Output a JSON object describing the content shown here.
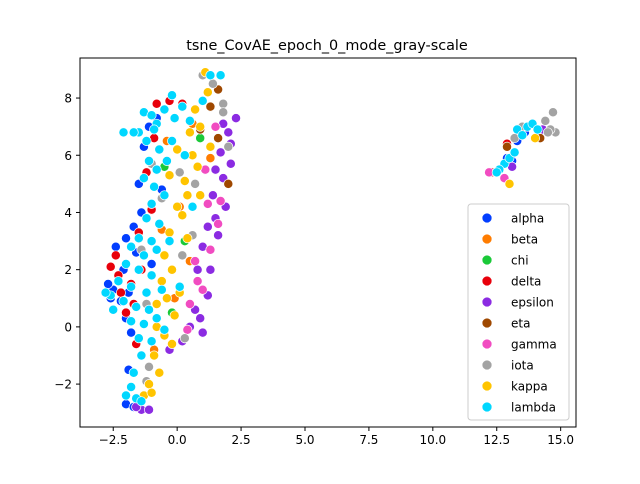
{
  "chart_data": {
    "type": "scatter",
    "title": "tsne_CovAE_epoch_0_mode_gray-scale",
    "xlabel": "",
    "ylabel": "",
    "xlim": [
      -3.8,
      15.6
    ],
    "ylim": [
      -3.5,
      9.4
    ],
    "x_ticks": [
      -2.5,
      0.0,
      2.5,
      5.0,
      7.5,
      10.0,
      12.5,
      15.0
    ],
    "x_tick_labels": [
      "−2.5",
      "0.0",
      "2.5",
      "5.0",
      "7.5",
      "10.0",
      "12.5",
      "15.0"
    ],
    "y_ticks": [
      -2,
      0,
      2,
      4,
      6,
      8
    ],
    "y_tick_labels": [
      "−2",
      "0",
      "2",
      "4",
      "6",
      "8"
    ],
    "grid": false,
    "legend_position": "right-bottom",
    "series": [
      {
        "name": "alpha",
        "color": "#023eff",
        "points": [
          [
            -2.4,
            2.8
          ],
          [
            -2.1,
            2.0
          ],
          [
            -2.2,
            0.9
          ],
          [
            -1.9,
            1.2
          ],
          [
            -2.3,
            1.6
          ],
          [
            -2.0,
            3.1
          ],
          [
            -1.7,
            3.5
          ],
          [
            -1.6,
            2.6
          ],
          [
            -2.5,
            1.3
          ],
          [
            -1.8,
            -0.2
          ],
          [
            -2.0,
            0.3
          ],
          [
            -1.4,
            4.0
          ],
          [
            -1.5,
            5.0
          ],
          [
            -1.3,
            6.3
          ],
          [
            -1.1,
            7.0
          ],
          [
            -0.8,
            7.3
          ],
          [
            -1.9,
            -1.5
          ],
          [
            -2.0,
            -2.7
          ],
          [
            -1.7,
            -2.8
          ],
          [
            -2.6,
            1.0
          ],
          [
            -2.7,
            1.5
          ],
          [
            -1.0,
            2.2
          ],
          [
            -0.6,
            4.8
          ],
          [
            12.9,
            5.9
          ],
          [
            13.3,
            6.5
          ],
          [
            13.1,
            5.8
          ],
          [
            13.6,
            6.8
          ]
        ]
      },
      {
        "name": "beta",
        "color": "#ff7c00",
        "points": [
          [
            -0.4,
            6.5
          ],
          [
            0.1,
            4.2
          ],
          [
            0.5,
            2.3
          ],
          [
            -0.1,
            1.0
          ],
          [
            -0.9,
            -0.8
          ],
          [
            0.6,
            7.1
          ],
          [
            1.3,
            5.9
          ],
          [
            -0.6,
            3.4
          ]
        ]
      },
      {
        "name": "chi",
        "color": "#1ac938",
        "points": [
          [
            -0.5,
            5.6
          ],
          [
            0.3,
            3.0
          ],
          [
            -0.2,
            0.5
          ],
          [
            0.9,
            6.6
          ]
        ]
      },
      {
        "name": "delta",
        "color": "#e8000b",
        "points": [
          [
            -2.4,
            2.5
          ],
          [
            -2.6,
            2.1
          ],
          [
            -2.3,
            1.8
          ],
          [
            -2.2,
            1.2
          ],
          [
            -1.7,
            0.8
          ],
          [
            -1.5,
            3.3
          ],
          [
            -1.2,
            5.4
          ],
          [
            -0.8,
            7.8
          ],
          [
            -0.3,
            7.9
          ],
          [
            0.2,
            7.8
          ],
          [
            -1.0,
            4.1
          ],
          [
            -2.0,
            0.5
          ],
          [
            -1.6,
            -0.6
          ],
          [
            -0.9,
            6.6
          ],
          [
            -1.4,
            2.0
          ],
          [
            -1.8,
            1.5
          ],
          [
            12.3,
            5.4
          ],
          [
            12.9,
            6.4
          ]
        ]
      },
      {
        "name": "epsilon",
        "color": "#8b2be2",
        "points": [
          [
            1.0,
            2.8
          ],
          [
            1.3,
            2.0
          ],
          [
            1.5,
            3.8
          ],
          [
            1.8,
            5.2
          ],
          [
            2.0,
            6.8
          ],
          [
            2.3,
            7.3
          ],
          [
            1.9,
            4.2
          ],
          [
            1.2,
            1.1
          ],
          [
            0.9,
            0.3
          ],
          [
            0.5,
            0.0
          ],
          [
            0.2,
            -0.5
          ],
          [
            -0.3,
            -0.8
          ],
          [
            1.7,
            6.1
          ],
          [
            1.4,
            4.6
          ],
          [
            2.1,
            5.7
          ],
          [
            0.7,
            0.6
          ],
          [
            1.0,
            -0.2
          ],
          [
            1.6,
            3.2
          ],
          [
            -1.4,
            -2.9
          ],
          [
            -1.1,
            -2.9
          ],
          [
            -1.6,
            -2.8
          ],
          [
            0.8,
            2.0
          ],
          [
            1.2,
            3.5
          ],
          [
            1.5,
            5.5
          ],
          [
            2.1,
            6.4
          ],
          [
            1.8,
            7.1
          ],
          [
            13.1,
            5.6
          ],
          [
            13.9,
            7.1
          ],
          [
            14.3,
            6.9
          ]
        ]
      },
      {
        "name": "eta",
        "color": "#9f4800",
        "points": [
          [
            1.6,
            8.3
          ],
          [
            1.3,
            7.7
          ],
          [
            2.0,
            5.0
          ],
          [
            0.9,
            6.9
          ],
          [
            1.6,
            6.6
          ],
          [
            12.9,
            6.3
          ],
          [
            14.2,
            6.6
          ]
        ]
      },
      {
        "name": "gamma",
        "color": "#f14cc1",
        "points": [
          [
            1.5,
            7.0
          ],
          [
            1.2,
            4.3
          ],
          [
            0.8,
            1.6
          ],
          [
            0.4,
            -0.1
          ],
          [
            1.3,
            2.7
          ],
          [
            0.7,
            2.3
          ],
          [
            1.7,
            4.4
          ],
          [
            1.0,
            1.3
          ],
          [
            1.1,
            5.5
          ],
          [
            1.6,
            3.6
          ],
          [
            0.5,
            0.8
          ],
          [
            12.2,
            5.4
          ],
          [
            12.8,
            5.2
          ]
        ]
      },
      {
        "name": "iota",
        "color": "#a3a3a3",
        "points": [
          [
            1.0,
            8.8
          ],
          [
            1.4,
            8.5
          ],
          [
            1.8,
            7.8
          ],
          [
            2.0,
            6.3
          ],
          [
            -0.6,
            4.5
          ],
          [
            0.1,
            5.4
          ],
          [
            0.2,
            2.5
          ],
          [
            -1.1,
            -1.4
          ],
          [
            -1.2,
            -1.9
          ],
          [
            13.5,
            7.0
          ],
          [
            14.4,
            7.2
          ],
          [
            14.7,
            7.5
          ],
          [
            14.8,
            6.8
          ],
          [
            14.6,
            6.9
          ],
          [
            13.2,
            6.6
          ],
          [
            14.5,
            6.8
          ],
          [
            -1.4,
            2.7
          ],
          [
            -1.0,
            5.7
          ],
          [
            0.7,
            5.0
          ],
          [
            1.8,
            7.5
          ],
          [
            0.3,
            -0.4
          ],
          [
            0.6,
            3.2
          ],
          [
            -1.2,
            0.8
          ]
        ]
      },
      {
        "name": "kappa",
        "color": "#ffc400",
        "points": [
          [
            1.1,
            8.9
          ],
          [
            1.2,
            8.2
          ],
          [
            0.9,
            7.0
          ],
          [
            0.6,
            6.0
          ],
          [
            0.3,
            5.1
          ],
          [
            0.0,
            4.2
          ],
          [
            -0.3,
            3.3
          ],
          [
            -0.5,
            2.5
          ],
          [
            -0.6,
            1.6
          ],
          [
            -0.8,
            0.8
          ],
          [
            -0.8,
            0.0
          ],
          [
            -0.9,
            -1.0
          ],
          [
            -1.1,
            -2.0
          ],
          [
            -1.3,
            -2.4
          ],
          [
            0.5,
            6.8
          ],
          [
            0.8,
            5.6
          ],
          [
            0.2,
            3.9
          ],
          [
            -0.2,
            2.0
          ],
          [
            0.1,
            1.2
          ],
          [
            -0.5,
            -0.3
          ],
          [
            0.9,
            4.6
          ],
          [
            0.4,
            3.1
          ],
          [
            -0.1,
            0.4
          ],
          [
            -0.7,
            -1.6
          ],
          [
            0.0,
            6.2
          ],
          [
            0.7,
            7.6
          ],
          [
            1.3,
            6.3
          ],
          [
            -0.4,
            1.0
          ],
          [
            -0.2,
            -0.6
          ],
          [
            0.4,
            4.6
          ],
          [
            13.0,
            5.0
          ],
          [
            14.0,
            6.6
          ],
          [
            -1.0,
            -2.3
          ],
          [
            -0.3,
            5.3
          ]
        ]
      },
      {
        "name": "lambda",
        "color": "#00d7ff",
        "points": [
          [
            -1.3,
            7.5
          ],
          [
            -1.0,
            7.4
          ],
          [
            -0.8,
            7.1
          ],
          [
            -0.5,
            7.6
          ],
          [
            -0.1,
            7.3
          ],
          [
            -1.5,
            6.8
          ],
          [
            -1.2,
            6.5
          ],
          [
            -0.7,
            6.2
          ],
          [
            -0.2,
            6.5
          ],
          [
            -1.7,
            6.8
          ],
          [
            -1.1,
            5.8
          ],
          [
            -0.8,
            5.5
          ],
          [
            -0.4,
            5.8
          ],
          [
            -1.3,
            5.2
          ],
          [
            -0.9,
            4.9
          ],
          [
            -0.5,
            4.6
          ],
          [
            -1.0,
            4.3
          ],
          [
            -1.2,
            3.8
          ],
          [
            -0.7,
            3.6
          ],
          [
            -1.5,
            3.1
          ],
          [
            -1.0,
            3.0
          ],
          [
            -1.8,
            2.8
          ],
          [
            -1.3,
            2.5
          ],
          [
            -0.8,
            2.7
          ],
          [
            -2.0,
            2.2
          ],
          [
            -1.5,
            2.0
          ],
          [
            -1.0,
            1.8
          ],
          [
            -2.3,
            1.6
          ],
          [
            -1.8,
            1.4
          ],
          [
            -1.2,
            1.2
          ],
          [
            -0.6,
            1.3
          ],
          [
            -2.6,
            1.1
          ],
          [
            -2.1,
            0.9
          ],
          [
            -1.6,
            0.7
          ],
          [
            -1.1,
            0.6
          ],
          [
            -1.8,
            0.2
          ],
          [
            -1.3,
            0.1
          ],
          [
            -0.8,
            0.3
          ],
          [
            -1.5,
            -0.4
          ],
          [
            -1.0,
            -0.5
          ],
          [
            -1.4,
            -1.0
          ],
          [
            -1.7,
            -1.6
          ],
          [
            -1.8,
            -2.1
          ],
          [
            -1.6,
            -2.5
          ],
          [
            -2.0,
            -2.4
          ],
          [
            0.5,
            7.2
          ],
          [
            1.0,
            7.9
          ],
          [
            1.3,
            8.8
          ],
          [
            1.7,
            8.8
          ],
          [
            -0.2,
            8.1
          ],
          [
            0.2,
            7.7
          ],
          [
            -2.1,
            6.8
          ],
          [
            -0.3,
            3.0
          ],
          [
            0.1,
            1.4
          ],
          [
            -2.8,
            1.2
          ],
          [
            -2.5,
            0.6
          ],
          [
            -0.5,
            -0.1
          ],
          [
            0.3,
            6.0
          ],
          [
            0.6,
            4.2
          ],
          [
            -1.4,
            -2.6
          ],
          [
            -0.9,
            6.9
          ],
          [
            13.3,
            6.9
          ],
          [
            13.5,
            6.7
          ],
          [
            13.7,
            7.0
          ],
          [
            13.9,
            7.1
          ],
          [
            12.8,
            5.7
          ],
          [
            12.6,
            5.5
          ],
          [
            13.0,
            5.9
          ],
          [
            13.2,
            6.1
          ],
          [
            12.5,
            5.4
          ],
          [
            14.1,
            6.9
          ]
        ]
      }
    ]
  }
}
